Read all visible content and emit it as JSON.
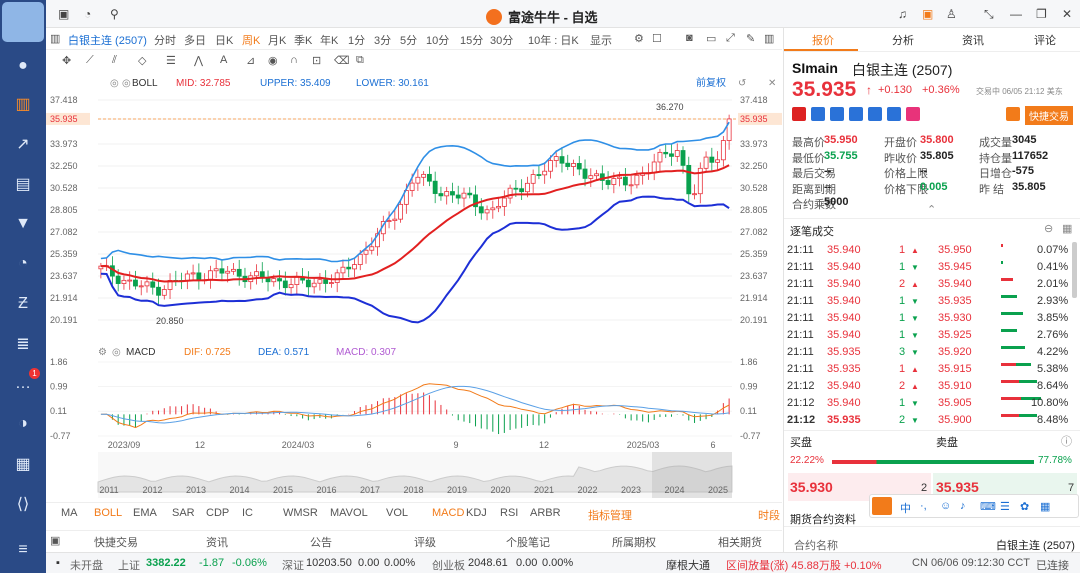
{
  "app": {
    "title": "富途牛牛 - 自选"
  },
  "toolbar": {
    "symbol": "白银主连 (2507)",
    "periods": [
      "分时",
      "多日",
      "日K",
      "周K",
      "月K",
      "季K",
      "年K",
      "1分",
      "3分",
      "5分",
      "10分",
      "15分",
      "30分",
      "10年 : 日K",
      "显示"
    ],
    "active_period": "周K"
  },
  "boll": {
    "label": "BOLL",
    "mid": "MID: 32.785",
    "upper": "UPPER: 35.409",
    "lower": "LOWER: 30.161",
    "fq": "前复权"
  },
  "price_axis": [
    "37.418",
    "35.935",
    "33.973",
    "32.250",
    "30.528",
    "28.805",
    "27.082",
    "25.359",
    "23.637",
    "21.914",
    "20.191"
  ],
  "chart_annot": {
    "high": "36.270",
    "low": "20.850"
  },
  "macd": {
    "label": "MACD",
    "dif": "DIF: 0.725",
    "dea": "DEA: 0.571",
    "macd": "MACD: 0.307",
    "axis": [
      "1.86",
      "0.99",
      "0.11",
      "-0.77"
    ]
  },
  "x_axis": [
    "2023/09",
    "12",
    "2024/03",
    "6",
    "9",
    "12",
    "2025/03",
    "6"
  ],
  "years": [
    "2011",
    "2012",
    "2013",
    "2014",
    "2015",
    "2016",
    "2017",
    "2018",
    "2019",
    "2020",
    "2021",
    "2022",
    "2023",
    "2024",
    "2025"
  ],
  "indicators": [
    "MA",
    "BOLL",
    "EMA",
    "SAR",
    "CDP",
    "IC",
    "WMSR",
    "MAVOL",
    "VOL",
    "MACD",
    "KDJ",
    "RSI",
    "ARBR"
  ],
  "indicator_mgmt": "指标管理",
  "time_label": "时段",
  "bottom_tabs": [
    "快捷交易",
    "资讯",
    "公告",
    "评级",
    "个股笔记",
    "所属期权",
    "相关期货"
  ],
  "right_tabs": [
    "报价",
    "分析",
    "资讯",
    "评论"
  ],
  "quote": {
    "code": "SImain",
    "name": "白银主连 (2507)",
    "price": "35.935",
    "arrow": "↑",
    "change": "+0.130",
    "change_pct": "+0.36%",
    "time": "交易中 06/05 21:12 美东",
    "quick_trade": "快捷交易"
  },
  "stats": [
    [
      "最高价",
      "35.950",
      "开盘价",
      "35.800",
      "成交量",
      "3045"
    ],
    [
      "最低价",
      "35.755",
      "昨收价",
      "35.805",
      "持仓量",
      "117652"
    ],
    [
      "最后交易",
      "--",
      "价格上限",
      "--",
      "日增仓",
      "-575"
    ],
    [
      "距离到期",
      "--",
      "价格下限",
      "0.005",
      "昨  结",
      "35.805"
    ],
    [
      "合约乘数",
      "5000",
      "",
      "",
      "",
      ""
    ]
  ],
  "ticks_title": "逐笔成交",
  "ticks": [
    {
      "t": "21:11",
      "p": "35.940",
      "q": "1",
      "d": "up",
      "p2": "35.950",
      "pct": "0.07%",
      "side": "sell",
      "w": 2
    },
    {
      "t": "21:11",
      "p": "35.940",
      "q": "1",
      "d": "down",
      "p2": "35.945",
      "pct": "0.41%",
      "side": "buy",
      "w": 2
    },
    {
      "t": "21:11",
      "p": "35.940",
      "q": "2",
      "d": "up",
      "p2": "35.940",
      "pct": "2.01%",
      "side": "sell",
      "w": 12
    },
    {
      "t": "21:11",
      "p": "35.940",
      "q": "1",
      "d": "down",
      "p2": "35.935",
      "pct": "2.93%",
      "side": "buy",
      "w": 16
    },
    {
      "t": "21:11",
      "p": "35.940",
      "q": "1",
      "d": "down",
      "p2": "35.930",
      "pct": "3.85%",
      "side": "buy",
      "w": 22
    },
    {
      "t": "21:11",
      "p": "35.940",
      "q": "1",
      "d": "down",
      "p2": "35.925",
      "pct": "2.76%",
      "side": "buy",
      "w": 16
    },
    {
      "t": "21:11",
      "p": "35.935",
      "q": "3",
      "d": "down",
      "p2": "35.920",
      "pct": "4.22%",
      "side": "buy",
      "w": 24
    },
    {
      "t": "21:11",
      "p": "35.935",
      "q": "1",
      "d": "up",
      "p2": "35.915",
      "pct": "5.38%",
      "side": "mix",
      "w": 30
    },
    {
      "t": "21:12",
      "p": "35.940",
      "q": "2",
      "d": "up",
      "p2": "35.910",
      "pct": "8.64%",
      "side": "mix",
      "w": 36
    },
    {
      "t": "21:12",
      "p": "35.940",
      "q": "1",
      "d": "down",
      "p2": "35.905",
      "pct": "10.80%",
      "side": "mix",
      "w": 40
    },
    {
      "t": "21:12",
      "p": "35.935",
      "q": "2",
      "d": "down",
      "p2": "35.900",
      "pct": "8.48%",
      "side": "mix",
      "w": 36
    }
  ],
  "orderbook": {
    "buy_label": "买盘",
    "sell_label": "卖盘",
    "buy_pct": "22.22%",
    "sell_pct": "77.78%",
    "buy_price": "35.930",
    "buy_qty": "2",
    "sell_price": "35.935",
    "sell_qty": "7"
  },
  "contract": {
    "title": "期货合约资料",
    "name_label": "合约名称",
    "name_value": "白银主连 (2507)"
  },
  "status": {
    "market": "未开盘",
    "sh_label": "上证",
    "sh_value": "3382.22",
    "sh_chg": "-1.87",
    "sh_pct": "-0.06%",
    "sz_label": "深证",
    "sz_value": "10203.50",
    "sz_chg": "0.00",
    "sz_pct": "0.00%",
    "cy_label": "创业板",
    "cy_value": "2048.61",
    "cy_chg": "0.00",
    "cy_pct": "0.00%",
    "broker": "摩根大通",
    "flow": "区间放量(涨) 45.88万股 +0.10%",
    "clock": "CN 06/06 09:12:30 CCT",
    "conn": "已连接"
  },
  "chart_data": {
    "type": "candlestick",
    "title": "白银主连 (2507)",
    "ylim": [
      20.191,
      37.418
    ],
    "annotations": {
      "high": 36.27,
      "low": 20.85,
      "last": 35.935
    },
    "boll": {
      "mid": 32.785,
      "upper": 35.409,
      "lower": 30.161
    },
    "macd": {
      "dif": 0.725,
      "dea": 0.571,
      "macd": 0.307,
      "ylim": [
        -0.77,
        1.86
      ]
    }
  }
}
